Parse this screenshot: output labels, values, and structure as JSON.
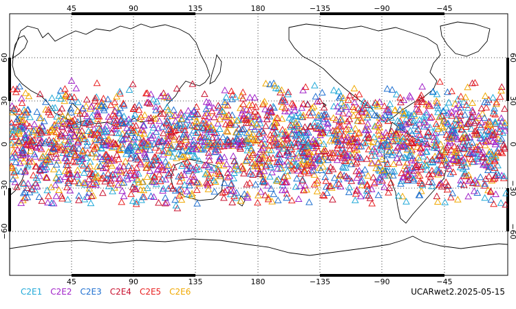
{
  "map": {
    "lon_labels": [
      "45",
      "90",
      "135",
      "180",
      "−135",
      "−90",
      "−45"
    ],
    "lat_labels": [
      "60",
      "30",
      "0",
      "−30",
      "−60"
    ]
  },
  "legend": [
    {
      "label": "C2E1",
      "color": "#1fa8d8"
    },
    {
      "label": "C2E2",
      "color": "#a020c8"
    },
    {
      "label": "C2E3",
      "color": "#1e6fd0"
    },
    {
      "label": "C2E4",
      "color": "#c8102e"
    },
    {
      "label": "C2E5",
      "color": "#e81e1e"
    },
    {
      "label": "C2E6",
      "color": "#f0a800"
    }
  ],
  "caption": "UCARwet2.2025-05-15",
  "marker_shape": "triangle-icon",
  "observation_band_degrees": {
    "north": 45,
    "south": -45
  }
}
